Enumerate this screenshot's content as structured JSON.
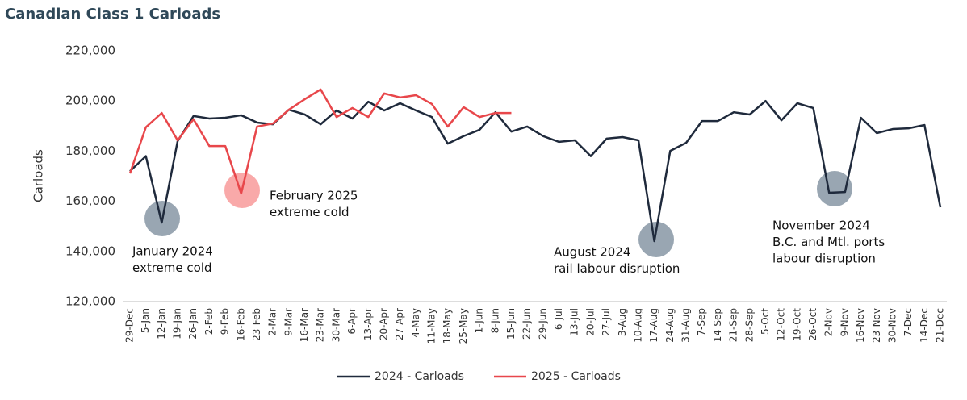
{
  "chart_data": {
    "type": "line",
    "title": "Canadian Class 1 Carloads",
    "y_label": "Carloads",
    "categories": [
      "29-Dec",
      "5-Jan",
      "12-Jan",
      "19-Jan",
      "26-Jan",
      "2-Feb",
      "9-Feb",
      "16-Feb",
      "23-Feb",
      "2-Mar",
      "9-Mar",
      "16-Mar",
      "23-Mar",
      "30-Mar",
      "6-Apr",
      "13-Apr",
      "20-Apr",
      "27-Apr",
      "4-May",
      "11-May",
      "18-May",
      "25-May",
      "1-Jun",
      "8-Jun",
      "15-Jun",
      "22-Jun",
      "29-Jun",
      "6-Jul",
      "13-Jul",
      "20-Jul",
      "27-Jul",
      "3-Aug",
      "10-Aug",
      "17-Aug",
      "24-Aug",
      "31-Aug",
      "7-Sep",
      "14-Sep",
      "21-Sep",
      "28-Sep",
      "5-Oct",
      "12-Oct",
      "19-Oct",
      "26-Oct",
      "2-Nov",
      "9-Nov",
      "16-Nov",
      "23-Nov",
      "30-Nov",
      "7-Dec",
      "14-Dec",
      "21-Dec"
    ],
    "series": [
      {
        "name": "2024 - Carloads",
        "color": "#1f2a3c",
        "values": [
          172000,
          178000,
          151500,
          184000,
          194000,
          193000,
          193300,
          194300,
          191400,
          190700,
          196500,
          194600,
          190700,
          196200,
          193000,
          199700,
          196200,
          199100,
          196200,
          193600,
          183000,
          186000,
          188500,
          195500,
          187800,
          189800,
          186000,
          183700,
          184300,
          178000,
          185000,
          185600,
          184300,
          144100,
          180100,
          183300,
          192000,
          192000,
          195500,
          194600,
          200000,
          192300,
          199100,
          197200,
          163400,
          163700,
          193300,
          187200,
          188800,
          189100,
          190400,
          157600
        ]
      },
      {
        "name": "2025 - Carloads",
        "color": "#e8474b",
        "values": [
          171100,
          189500,
          195200,
          184300,
          192700,
          182000,
          182000,
          163100,
          189800,
          191000,
          196500,
          200700,
          204600,
          193600,
          197200,
          193600,
          203000,
          201400,
          202300,
          198800,
          189800,
          197500,
          193600,
          195200,
          195200,
          null,
          null,
          null,
          null,
          null,
          null,
          null,
          null,
          null,
          null,
          null,
          null,
          null,
          null,
          null,
          null,
          null,
          null,
          null,
          null,
          null,
          null,
          null,
          null,
          null,
          null,
          null
        ]
      }
    ],
    "ylim": [
      120000,
      220000
    ],
    "yticks": [
      {
        "value": 120000,
        "label": "120,000"
      },
      {
        "value": 140000,
        "label": "140,000"
      },
      {
        "value": 160000,
        "label": "160,000"
      },
      {
        "value": 180000,
        "label": "180,000"
      },
      {
        "value": 200000,
        "label": "200,000"
      },
      {
        "value": 220000,
        "label": "220,000"
      }
    ],
    "grid": false,
    "legend": "bottom",
    "annotations": [
      {
        "lines": [
          "January 2024",
          "extreme cold"
        ]
      },
      {
        "lines": [
          "February 2025",
          "extreme cold"
        ]
      },
      {
        "lines": [
          "August 2024",
          "rail labour disruption"
        ]
      },
      {
        "lines": [
          "November 2024",
          "B.C. and Mtl. ports",
          "labour disruption"
        ]
      }
    ]
  }
}
